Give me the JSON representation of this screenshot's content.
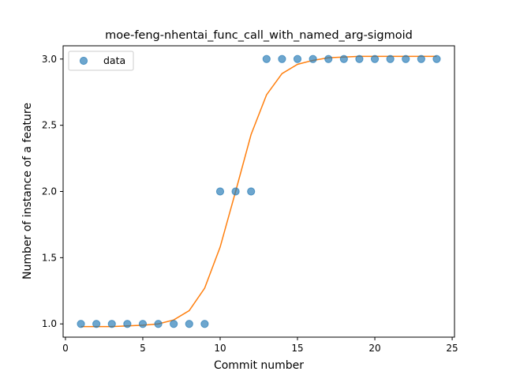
{
  "chart_data": {
    "type": "scatter",
    "title": "moe-feng-nhentai_func_call_with_named_arg-sigmoid",
    "xlabel": "Commit number",
    "ylabel": "Number of instance of a feature",
    "xlim": [
      -0.15,
      25.15
    ],
    "ylim": [
      0.9,
      3.1
    ],
    "xticks": [
      0,
      5,
      10,
      15,
      20,
      25
    ],
    "yticks": [
      1.0,
      1.5,
      2.0,
      2.5,
      3.0
    ],
    "legend": {
      "location": "upper-left",
      "entries": [
        "data"
      ]
    },
    "series": [
      {
        "name": "data",
        "kind": "scatter",
        "color": "#1f77b4",
        "x": [
          1,
          2,
          3,
          4,
          5,
          6,
          7,
          8,
          9,
          10,
          11,
          12,
          13,
          14,
          15,
          16,
          17,
          18,
          19,
          20,
          21,
          22,
          23,
          24
        ],
        "y": [
          1,
          1,
          1,
          1,
          1,
          1,
          1,
          1,
          1,
          2,
          2,
          2,
          3,
          3,
          3,
          3,
          3,
          3,
          3,
          3,
          3,
          3,
          3,
          3
        ]
      },
      {
        "kind": "line",
        "color": "#ff7f0e",
        "x": [
          1,
          2,
          3,
          4,
          5,
          6,
          7,
          8,
          9,
          10,
          11,
          12,
          13,
          14,
          15,
          16,
          17,
          18,
          19,
          20,
          21,
          22,
          23,
          24
        ],
        "y": [
          0.98,
          0.98,
          0.98,
          0.985,
          0.99,
          1.0,
          1.03,
          1.1,
          1.27,
          1.58,
          2.0,
          2.43,
          2.73,
          2.89,
          2.96,
          2.99,
          3.01,
          3.015,
          3.02,
          3.02,
          3.02,
          3.02,
          3.02,
          3.02
        ]
      }
    ]
  }
}
